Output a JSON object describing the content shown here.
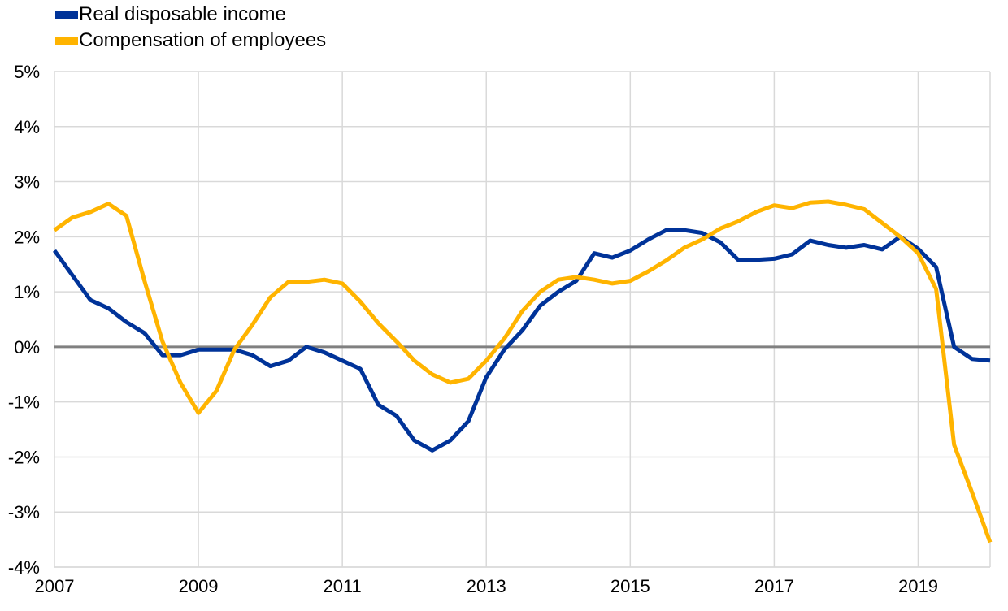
{
  "chart_data": {
    "type": "line",
    "title": "",
    "xlabel": "",
    "ylabel": "",
    "xlim": [
      2007,
      2020
    ],
    "ylim": [
      -4,
      5
    ],
    "x_ticks": [
      "2007",
      "2009",
      "2011",
      "2013",
      "2015",
      "2017",
      "2019"
    ],
    "y_ticks": [
      "5%",
      "4%",
      "3%",
      "2%",
      "1%",
      "0%",
      "-1%",
      "-2%",
      "-3%",
      "-4%"
    ],
    "grid": "vertical and horizontal",
    "legend_position": "top-left",
    "zero_line_color": "#808080",
    "series": [
      {
        "name": "Real disposable income",
        "color": "#003399",
        "x": [
          2007.0,
          2007.25,
          2007.5,
          2007.75,
          2008.0,
          2008.25,
          2008.5,
          2008.75,
          2009.0,
          2009.25,
          2009.5,
          2009.75,
          2010.0,
          2010.25,
          2010.5,
          2010.75,
          2011.0,
          2011.25,
          2011.5,
          2011.75,
          2012.0,
          2012.25,
          2012.5,
          2012.75,
          2013.0,
          2013.25,
          2013.5,
          2013.75,
          2014.0,
          2014.25,
          2014.5,
          2014.75,
          2015.0,
          2015.25,
          2015.5,
          2015.75,
          2016.0,
          2016.25,
          2016.5,
          2016.75,
          2017.0,
          2017.25,
          2017.5,
          2017.75,
          2018.0,
          2018.25,
          2018.5,
          2018.75,
          2019.0,
          2019.25,
          2019.5,
          2019.75,
          2020.0
        ],
        "values": [
          1.75,
          1.3,
          0.85,
          0.7,
          0.45,
          0.25,
          -0.15,
          -0.15,
          -0.05,
          -0.05,
          -0.05,
          -0.15,
          -0.35,
          -0.25,
          0.0,
          -0.1,
          -0.25,
          -0.4,
          -1.05,
          -1.25,
          -1.7,
          -1.88,
          -1.7,
          -1.35,
          -0.55,
          -0.05,
          0.3,
          0.75,
          1.0,
          1.2,
          1.7,
          1.62,
          1.75,
          1.95,
          2.12,
          2.12,
          2.07,
          1.9,
          1.58,
          1.58,
          1.6,
          1.68,
          1.93,
          1.85,
          1.8,
          1.85,
          1.77,
          2.0,
          1.78,
          1.45,
          0.0,
          -0.22,
          -0.25
        ]
      },
      {
        "name": "Compensation of employees",
        "color": "#FFB400",
        "x": [
          2007.0,
          2007.25,
          2007.5,
          2007.75,
          2008.0,
          2008.25,
          2008.5,
          2008.75,
          2009.0,
          2009.25,
          2009.5,
          2009.75,
          2010.0,
          2010.25,
          2010.5,
          2010.75,
          2011.0,
          2011.25,
          2011.5,
          2011.75,
          2012.0,
          2012.25,
          2012.5,
          2012.75,
          2013.0,
          2013.25,
          2013.5,
          2013.75,
          2014.0,
          2014.25,
          2014.5,
          2014.75,
          2015.0,
          2015.25,
          2015.5,
          2015.75,
          2016.0,
          2016.25,
          2016.5,
          2016.75,
          2017.0,
          2017.25,
          2017.5,
          2017.75,
          2018.0,
          2018.25,
          2018.5,
          2018.75,
          2019.0,
          2019.25,
          2019.5,
          2019.75,
          2020.0
        ],
        "values": [
          2.12,
          2.35,
          2.45,
          2.6,
          2.38,
          1.2,
          0.1,
          -0.65,
          -1.2,
          -0.8,
          -0.05,
          0.4,
          0.9,
          1.18,
          1.18,
          1.22,
          1.15,
          0.82,
          0.43,
          0.1,
          -0.25,
          -0.5,
          -0.65,
          -0.58,
          -0.25,
          0.15,
          0.65,
          1.0,
          1.22,
          1.27,
          1.22,
          1.15,
          1.2,
          1.37,
          1.57,
          1.8,
          1.95,
          2.15,
          2.28,
          2.45,
          2.57,
          2.52,
          2.62,
          2.64,
          2.58,
          2.5,
          2.25,
          2.0,
          1.7,
          1.05,
          -1.78,
          -2.65,
          -3.55
        ]
      }
    ]
  }
}
